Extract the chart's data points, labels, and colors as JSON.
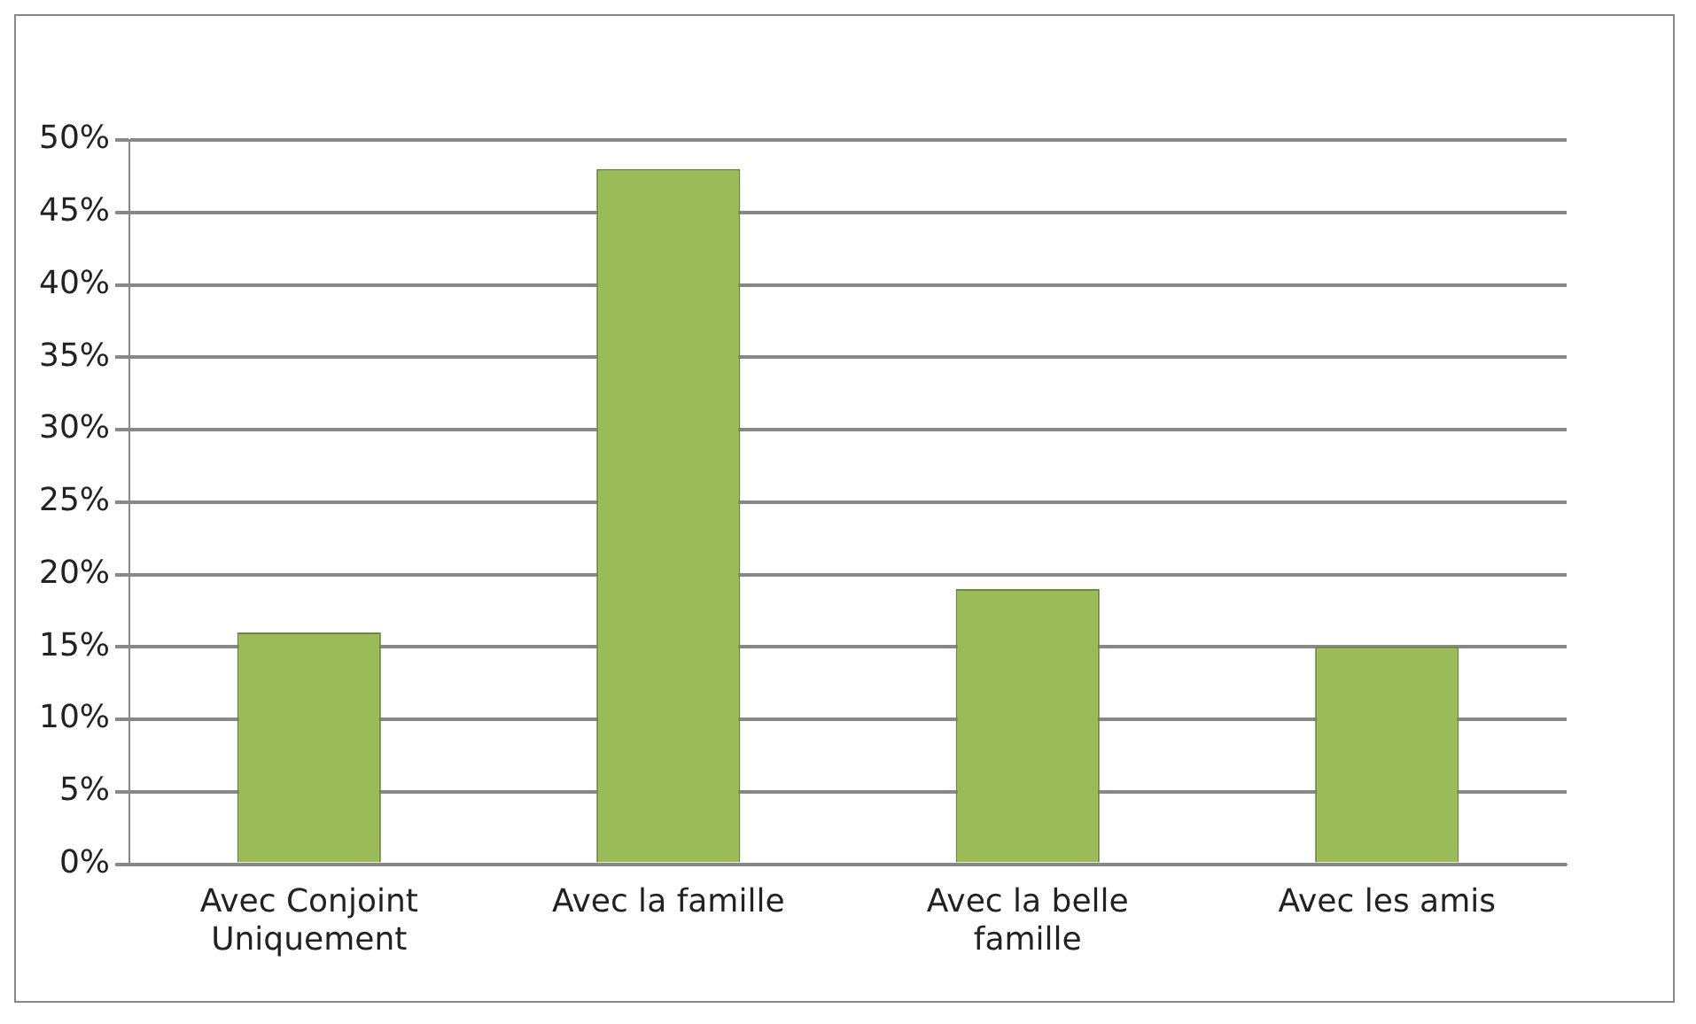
{
  "chart_data": {
    "type": "bar",
    "categories": [
      "Avec Conjoint Uniquement",
      "Avec la famille",
      "Avec la belle famille",
      "Avec les amis"
    ],
    "values": [
      16,
      48,
      19,
      15
    ],
    "color": "#9bbb59",
    "ylim": [
      0,
      50
    ],
    "yticks": [
      {
        "value": 0,
        "label": "0%"
      },
      {
        "value": 5,
        "label": "5%"
      },
      {
        "value": 10,
        "label": "10%"
      },
      {
        "value": 15,
        "label": "15%"
      },
      {
        "value": 20,
        "label": "20%"
      },
      {
        "value": 25,
        "label": "25%"
      },
      {
        "value": 30,
        "label": "30%"
      },
      {
        "value": 35,
        "label": "35%"
      },
      {
        "value": 40,
        "label": "40%"
      },
      {
        "value": 45,
        "label": "45%"
      },
      {
        "value": 50,
        "label": "50%"
      }
    ],
    "grid": "y",
    "legend": false
  }
}
